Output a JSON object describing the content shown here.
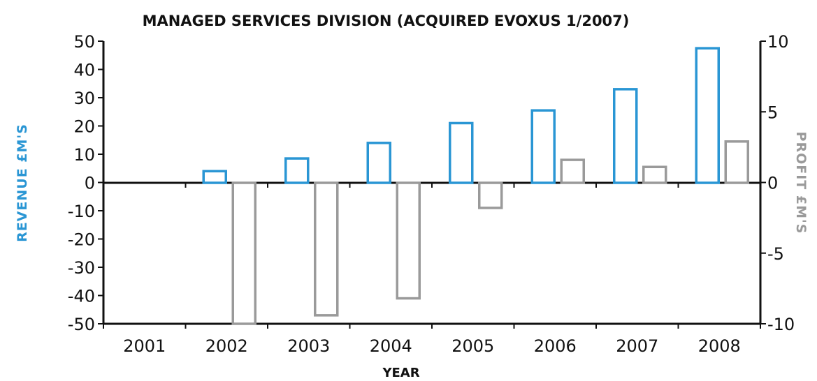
{
  "chart_data": {
    "type": "bar",
    "title": "MANAGED SERVICES DIVISION (ACQUIRED EVOXUS 1/2007)",
    "xlabel": "YEAR",
    "ylabel_left": "REVENUE £M'S",
    "ylabel_right": "PROFIT £M'S",
    "categories": [
      "2001",
      "2002",
      "2003",
      "2004",
      "2005",
      "2006",
      "2007",
      "2008"
    ],
    "series": [
      {
        "name": "",
        "axis": "left",
        "color": "#2a96d4",
        "values": [
          null,
          4,
          8.5,
          14,
          21,
          25.5,
          33,
          47.5
        ]
      },
      {
        "name": "",
        "axis": "right",
        "color": "#9a9a9a",
        "values": [
          null,
          -10,
          -9.4,
          -8.2,
          -1.8,
          1.6,
          1.1,
          2.9
        ]
      }
    ],
    "ylim_left": [
      -50,
      50
    ],
    "yticks_left": [
      "50",
      "40",
      "30",
      "20",
      "10",
      "0",
      "-10",
      "-20",
      "-30",
      "-40",
      "-50"
    ],
    "ylim_right": [
      -10,
      10
    ],
    "yticks_right": [
      "10",
      "5",
      "0",
      "-5",
      "-10"
    ],
    "grid": false,
    "legend": "none"
  }
}
